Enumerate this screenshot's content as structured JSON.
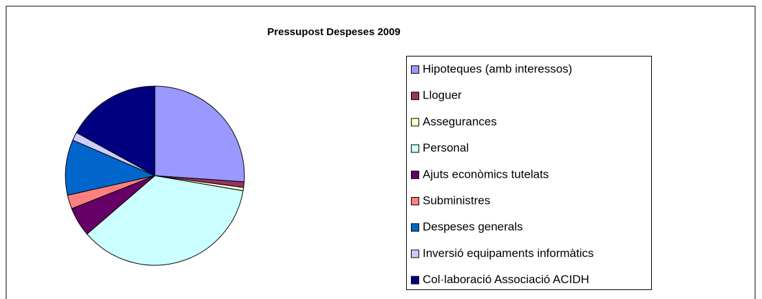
{
  "chart_data": {
    "type": "pie",
    "title": "Pressupost Despeses 2009",
    "categories": [
      "Hipoteques (amb interessos)",
      "Lloguer",
      "Assegurances",
      "Personal",
      "Ajuts econòmics  tutelats",
      "Subministres",
      "Despeses generals",
      "Inversió equipaments informàtics",
      "Col·laboració Associació ACIDH"
    ],
    "values": [
      26.1,
      1,
      0.6,
      36,
      5.3,
      2.5,
      10,
      1.5,
      17
    ],
    "colors": [
      "#9999ff",
      "#993366",
      "#ffffcc",
      "#ccffff",
      "#660066",
      "#ff8080",
      "#0066cc",
      "#ccccff",
      "#000080"
    ],
    "legend": "right"
  }
}
